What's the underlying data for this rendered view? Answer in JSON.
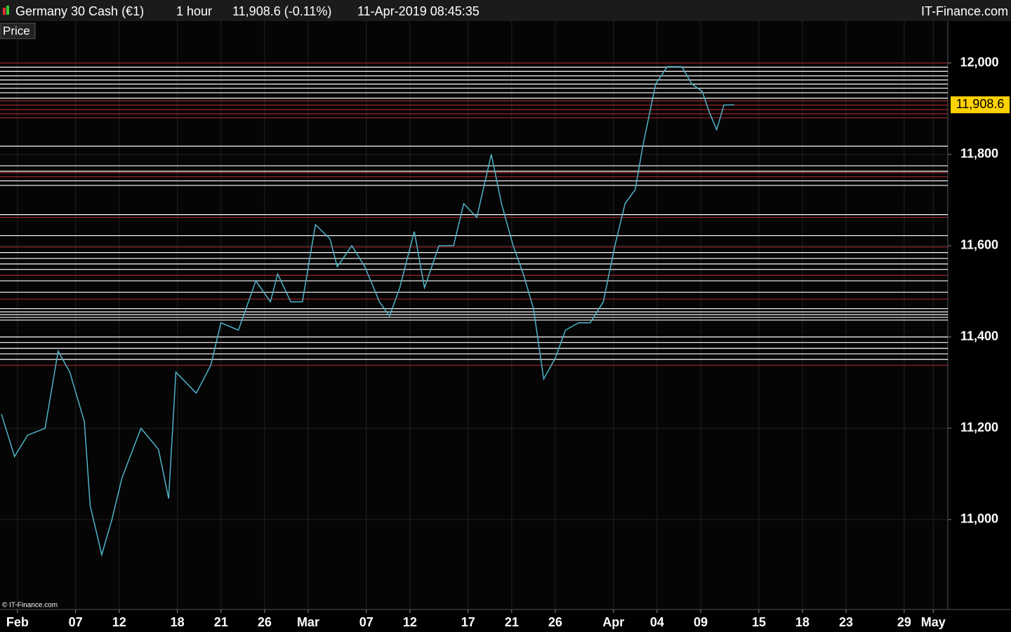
{
  "chart_data": {
    "type": "line",
    "header": {
      "instrument": "Germany 30 Cash (€1)",
      "interval": "1 hour",
      "quote": "11,908.6 (-0.11%)",
      "timestamp": "11-Apr-2019 08:45:35",
      "brand": "IT-Finance.com"
    },
    "panel_label": "Price",
    "copyright": "© IT-Finance.com",
    "last_price": {
      "value": 11908.6,
      "label": "11,908.6"
    },
    "xlim": [
      -1.2,
      64
    ],
    "ylim": [
      10803,
      12092
    ],
    "xticks": [
      {
        "value": 0,
        "label": "Feb"
      },
      {
        "value": 4,
        "label": "07"
      },
      {
        "value": 7,
        "label": "12"
      },
      {
        "value": 11,
        "label": "18"
      },
      {
        "value": 14,
        "label": "21"
      },
      {
        "value": 17,
        "label": "26"
      },
      {
        "value": 20,
        "label": "Mar"
      },
      {
        "value": 24,
        "label": "07"
      },
      {
        "value": 27,
        "label": "12"
      },
      {
        "value": 31,
        "label": "17"
      },
      {
        "value": 34,
        "label": "21"
      },
      {
        "value": 37,
        "label": "26"
      },
      {
        "value": 41,
        "label": "Apr"
      },
      {
        "value": 44,
        "label": "04"
      },
      {
        "value": 47,
        "label": "09"
      },
      {
        "value": 51,
        "label": "15"
      },
      {
        "value": 54,
        "label": "18"
      },
      {
        "value": 57,
        "label": "23"
      },
      {
        "value": 61,
        "label": "29"
      },
      {
        "value": 63,
        "label": "May"
      }
    ],
    "yticks": [
      {
        "value": 11000,
        "label": "11,000"
      },
      {
        "value": 11200,
        "label": "11,200"
      },
      {
        "value": 11400,
        "label": "11,400"
      },
      {
        "value": 11600,
        "label": "11,600"
      },
      {
        "value": 11800,
        "label": "11,800"
      },
      {
        "value": 12000,
        "label": "12,000"
      }
    ],
    "grid": true,
    "series": [
      {
        "name": "Price",
        "color": "#4fb3c8",
        "x": [
          -1.1,
          -0.2,
          0.7,
          1.9,
          2.8,
          3.6,
          4.6,
          5.0,
          5.8,
          6.5,
          7.2,
          8.5,
          9.7,
          10.4,
          10.9,
          12.3,
          13.3,
          14.0,
          15.2,
          16.4,
          17.4,
          17.9,
          18.8,
          19.6,
          20.5,
          21.5,
          22.0,
          23.0,
          23.9,
          24.9,
          25.6,
          26.3,
          27.3,
          28.0,
          29.0,
          30.0,
          30.7,
          31.6,
          32.6,
          33.3,
          34.1,
          34.8,
          35.5,
          36.2,
          37.0,
          37.7,
          38.6,
          39.4,
          40.3,
          41.1,
          41.8,
          42.5,
          43.0,
          43.5,
          43.9,
          44.7,
          45.7,
          46.4,
          47.1,
          47.6,
          48.1,
          48.6,
          49.3
        ],
        "values": [
          11231,
          11138,
          11185,
          11200,
          11369,
          11323,
          11215,
          11031,
          10923,
          11000,
          11092,
          11200,
          11154,
          11046,
          11323,
          11277,
          11338,
          11431,
          11415,
          11523,
          11477,
          11538,
          11477,
          11477,
          11646,
          11615,
          11554,
          11600,
          11554,
          11477,
          11446,
          11508,
          11631,
          11508,
          11600,
          11600,
          11692,
          11662,
          11800,
          11692,
          11600,
          11538,
          11462,
          11308,
          11354,
          11415,
          11431,
          11431,
          11477,
          11600,
          11692,
          11723,
          11815,
          11892,
          11954,
          11992,
          11992,
          11954,
          11938,
          11892,
          11854,
          11908,
          11908.6
        ]
      }
    ],
    "levels": [
      {
        "color": "#ffffff",
        "values": [
          11991,
          11982,
          11972,
          11963,
          11954,
          11945,
          11935,
          11923,
          11818,
          11775,
          11763,
          11742,
          11732,
          11668,
          11622,
          11585,
          11572,
          11560,
          11548,
          11523,
          11498,
          11462,
          11455,
          11449,
          11443,
          11437,
          11400,
          11388,
          11375,
          11363,
          11351
        ]
      },
      {
        "color": "#a0262c",
        "values": [
          12000,
          11917,
          11908,
          11898,
          11889,
          11880,
          11760,
          11751,
          11662,
          11597,
          11535,
          11483,
          11338
        ]
      }
    ]
  }
}
